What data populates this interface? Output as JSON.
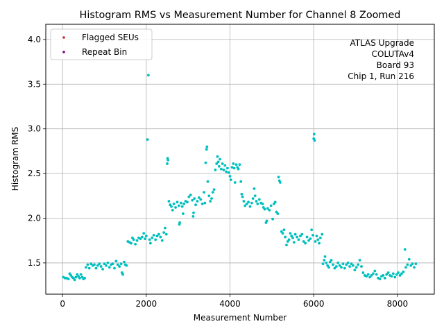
{
  "chart_data": {
    "type": "scatter",
    "title": "Histogram RMS vs Measurement Number for Channel 8 Zoomed",
    "xlabel": "Measurement Number",
    "ylabel": "Histogram RMS",
    "xlim": [
      -400,
      8880
    ],
    "ylim": [
      1.15,
      4.17
    ],
    "x_ticks": [
      0,
      2000,
      4000,
      6000,
      8000
    ],
    "y_ticks": [
      1.5,
      2.0,
      2.5,
      3.0,
      3.5,
      4.0
    ],
    "grid": true,
    "legend_position": "top-left",
    "legend": [
      {
        "label": "Flagged SEUs",
        "color": "#d62728"
      },
      {
        "label": "Repeat Bin",
        "color": "#800080"
      }
    ],
    "annotation_lines": [
      "ATLAS Upgrade",
      "COLUTAv4",
      "Board 93",
      "Chip 1, Run 216"
    ],
    "point_color": "#00bfbf",
    "series": [
      {
        "points": [
          [
            20,
            1.34
          ],
          [
            60,
            1.33
          ],
          [
            100,
            1.33
          ],
          [
            140,
            1.32
          ],
          [
            170,
            1.38
          ],
          [
            200,
            1.36
          ],
          [
            230,
            1.34
          ],
          [
            260,
            1.33
          ],
          [
            290,
            1.31
          ],
          [
            320,
            1.34
          ],
          [
            350,
            1.37
          ],
          [
            380,
            1.35
          ],
          [
            410,
            1.33
          ],
          [
            440,
            1.37
          ],
          [
            470,
            1.34
          ],
          [
            500,
            1.32
          ],
          [
            530,
            1.33
          ],
          [
            560,
            1.45
          ],
          [
            600,
            1.48
          ],
          [
            640,
            1.44
          ],
          [
            680,
            1.49
          ],
          [
            720,
            1.47
          ],
          [
            760,
            1.48
          ],
          [
            800,
            1.44
          ],
          [
            840,
            1.47
          ],
          [
            880,
            1.49
          ],
          [
            920,
            1.46
          ],
          [
            960,
            1.43
          ],
          [
            1000,
            1.49
          ],
          [
            1040,
            1.47
          ],
          [
            1080,
            1.5
          ],
          [
            1120,
            1.45
          ],
          [
            1160,
            1.48
          ],
          [
            1200,
            1.49
          ],
          [
            1240,
            1.44
          ],
          [
            1280,
            1.52
          ],
          [
            1320,
            1.48
          ],
          [
            1360,
            1.46
          ],
          [
            1400,
            1.49
          ],
          [
            1420,
            1.39
          ],
          [
            1440,
            1.37
          ],
          [
            1470,
            1.51
          ],
          [
            1500,
            1.48
          ],
          [
            1530,
            1.47
          ],
          [
            1560,
            1.74
          ],
          [
            1600,
            1.73
          ],
          [
            1640,
            1.72
          ],
          [
            1670,
            1.78
          ],
          [
            1700,
            1.76
          ],
          [
            1740,
            1.71
          ],
          [
            1780,
            1.75
          ],
          [
            1820,
            1.78
          ],
          [
            1860,
            1.77
          ],
          [
            1900,
            1.79
          ],
          [
            1940,
            1.83
          ],
          [
            1970,
            1.77
          ],
          [
            2000,
            1.8
          ],
          [
            2030,
            2.88
          ],
          [
            2050,
            3.6
          ],
          [
            2080,
            1.76
          ],
          [
            2100,
            1.72
          ],
          [
            2140,
            1.78
          ],
          [
            2180,
            1.81
          ],
          [
            2220,
            1.76
          ],
          [
            2260,
            1.8
          ],
          [
            2300,
            1.82
          ],
          [
            2340,
            1.79
          ],
          [
            2380,
            1.75
          ],
          [
            2420,
            1.84
          ],
          [
            2450,
            1.89
          ],
          [
            2480,
            1.82
          ],
          [
            2500,
            2.61
          ],
          [
            2510,
            2.67
          ],
          [
            2520,
            2.65
          ],
          [
            2540,
            2.19
          ],
          [
            2570,
            2.15
          ],
          [
            2600,
            2.13
          ],
          [
            2630,
            2.09
          ],
          [
            2660,
            2.16
          ],
          [
            2700,
            2.12
          ],
          [
            2740,
            2.18
          ],
          [
            2780,
            2.14
          ],
          [
            2790,
            1.93
          ],
          [
            2800,
            1.95
          ],
          [
            2830,
            2.17
          ],
          [
            2860,
            2.13
          ],
          [
            2880,
            2.05
          ],
          [
            2900,
            2.16
          ],
          [
            2940,
            2.19
          ],
          [
            2980,
            2.18
          ],
          [
            3020,
            2.24
          ],
          [
            3060,
            2.26
          ],
          [
            3100,
            2.2
          ],
          [
            3120,
            2.02
          ],
          [
            3130,
            2.06
          ],
          [
            3150,
            2.22
          ],
          [
            3180,
            2.15
          ],
          [
            3220,
            2.19
          ],
          [
            3260,
            2.23
          ],
          [
            3300,
            2.21
          ],
          [
            3340,
            2.16
          ],
          [
            3380,
            2.29
          ],
          [
            3400,
            2.17
          ],
          [
            3420,
            2.62
          ],
          [
            3440,
            2.77
          ],
          [
            3450,
            2.8
          ],
          [
            3470,
            2.41
          ],
          [
            3500,
            2.25
          ],
          [
            3530,
            2.19
          ],
          [
            3560,
            2.22
          ],
          [
            3590,
            2.29
          ],
          [
            3620,
            2.32
          ],
          [
            3650,
            2.54
          ],
          [
            3680,
            2.61
          ],
          [
            3700,
            2.69
          ],
          [
            3720,
            2.63
          ],
          [
            3740,
            2.58
          ],
          [
            3760,
            2.66
          ],
          [
            3790,
            2.55
          ],
          [
            3820,
            2.61
          ],
          [
            3850,
            2.54
          ],
          [
            3880,
            2.59
          ],
          [
            3910,
            2.52
          ],
          [
            3940,
            2.56
          ],
          [
            3970,
            2.51
          ],
          [
            4000,
            2.47
          ],
          [
            4020,
            2.43
          ],
          [
            4050,
            2.57
          ],
          [
            4080,
            2.61
          ],
          [
            4100,
            2.56
          ],
          [
            4120,
            2.4
          ],
          [
            4150,
            2.6
          ],
          [
            4180,
            2.57
          ],
          [
            4200,
            2.55
          ],
          [
            4230,
            2.6
          ],
          [
            4260,
            2.41
          ],
          [
            4280,
            2.27
          ],
          [
            4300,
            2.24
          ],
          [
            4330,
            2.19
          ],
          [
            4360,
            2.14
          ],
          [
            4400,
            2.16
          ],
          [
            4440,
            2.18
          ],
          [
            4480,
            2.13
          ],
          [
            4520,
            2.17
          ],
          [
            4550,
            2.22
          ],
          [
            4580,
            2.33
          ],
          [
            4600,
            2.25
          ],
          [
            4630,
            2.19
          ],
          [
            4660,
            2.16
          ],
          [
            4700,
            2.21
          ],
          [
            4740,
            2.17
          ],
          [
            4780,
            2.16
          ],
          [
            4800,
            2.12
          ],
          [
            4830,
            2.1
          ],
          [
            4860,
            1.95
          ],
          [
            4880,
            1.97
          ],
          [
            4900,
            2.11
          ],
          [
            4940,
            2.09
          ],
          [
            4980,
            2.14
          ],
          [
            5020,
            1.99
          ],
          [
            5050,
            2.16
          ],
          [
            5080,
            2.18
          ],
          [
            5110,
            2.07
          ],
          [
            5140,
            2.05
          ],
          [
            5160,
            2.46
          ],
          [
            5180,
            2.42
          ],
          [
            5200,
            2.4
          ],
          [
            5230,
            1.85
          ],
          [
            5260,
            1.83
          ],
          [
            5290,
            1.87
          ],
          [
            5320,
            1.79
          ],
          [
            5350,
            1.7
          ],
          [
            5380,
            1.74
          ],
          [
            5410,
            1.76
          ],
          [
            5440,
            1.83
          ],
          [
            5470,
            1.8
          ],
          [
            5500,
            1.78
          ],
          [
            5530,
            1.73
          ],
          [
            5560,
            1.82
          ],
          [
            5600,
            1.79
          ],
          [
            5640,
            1.76
          ],
          [
            5680,
            1.8
          ],
          [
            5720,
            1.82
          ],
          [
            5760,
            1.74
          ],
          [
            5800,
            1.72
          ],
          [
            5840,
            1.79
          ],
          [
            5880,
            1.75
          ],
          [
            5920,
            1.77
          ],
          [
            5950,
            1.87
          ],
          [
            5980,
            1.81
          ],
          [
            6000,
            2.89
          ],
          [
            6010,
            2.94
          ],
          [
            6020,
            2.87
          ],
          [
            6040,
            1.74
          ],
          [
            6070,
            1.8
          ],
          [
            6100,
            1.76
          ],
          [
            6130,
            1.72
          ],
          [
            6160,
            1.78
          ],
          [
            6200,
            1.82
          ],
          [
            6220,
            1.49
          ],
          [
            6250,
            1.53
          ],
          [
            6270,
            1.57
          ],
          [
            6300,
            1.5
          ],
          [
            6330,
            1.47
          ],
          [
            6360,
            1.45
          ],
          [
            6390,
            1.51
          ],
          [
            6420,
            1.53
          ],
          [
            6460,
            1.48
          ],
          [
            6500,
            1.44
          ],
          [
            6540,
            1.46
          ],
          [
            6580,
            1.5
          ],
          [
            6620,
            1.47
          ],
          [
            6660,
            1.45
          ],
          [
            6700,
            1.49
          ],
          [
            6740,
            1.44
          ],
          [
            6780,
            1.48
          ],
          [
            6820,
            1.5
          ],
          [
            6860,
            1.46
          ],
          [
            6900,
            1.49
          ],
          [
            6940,
            1.47
          ],
          [
            6980,
            1.42
          ],
          [
            7020,
            1.45
          ],
          [
            7060,
            1.48
          ],
          [
            7100,
            1.53
          ],
          [
            7140,
            1.46
          ],
          [
            7180,
            1.39
          ],
          [
            7220,
            1.36
          ],
          [
            7260,
            1.35
          ],
          [
            7300,
            1.37
          ],
          [
            7340,
            1.34
          ],
          [
            7380,
            1.36
          ],
          [
            7420,
            1.38
          ],
          [
            7460,
            1.41
          ],
          [
            7500,
            1.37
          ],
          [
            7540,
            1.33
          ],
          [
            7580,
            1.32
          ],
          [
            7620,
            1.35
          ],
          [
            7660,
            1.36
          ],
          [
            7700,
            1.33
          ],
          [
            7740,
            1.37
          ],
          [
            7780,
            1.39
          ],
          [
            7820,
            1.36
          ],
          [
            7860,
            1.35
          ],
          [
            7900,
            1.38
          ],
          [
            7940,
            1.34
          ],
          [
            7980,
            1.37
          ],
          [
            8020,
            1.39
          ],
          [
            8060,
            1.36
          ],
          [
            8100,
            1.38
          ],
          [
            8140,
            1.4
          ],
          [
            8180,
            1.65
          ],
          [
            8200,
            1.45
          ],
          [
            8240,
            1.48
          ],
          [
            8280,
            1.54
          ],
          [
            8320,
            1.47
          ],
          [
            8360,
            1.49
          ],
          [
            8400,
            1.45
          ],
          [
            8440,
            1.49
          ]
        ]
      }
    ]
  }
}
